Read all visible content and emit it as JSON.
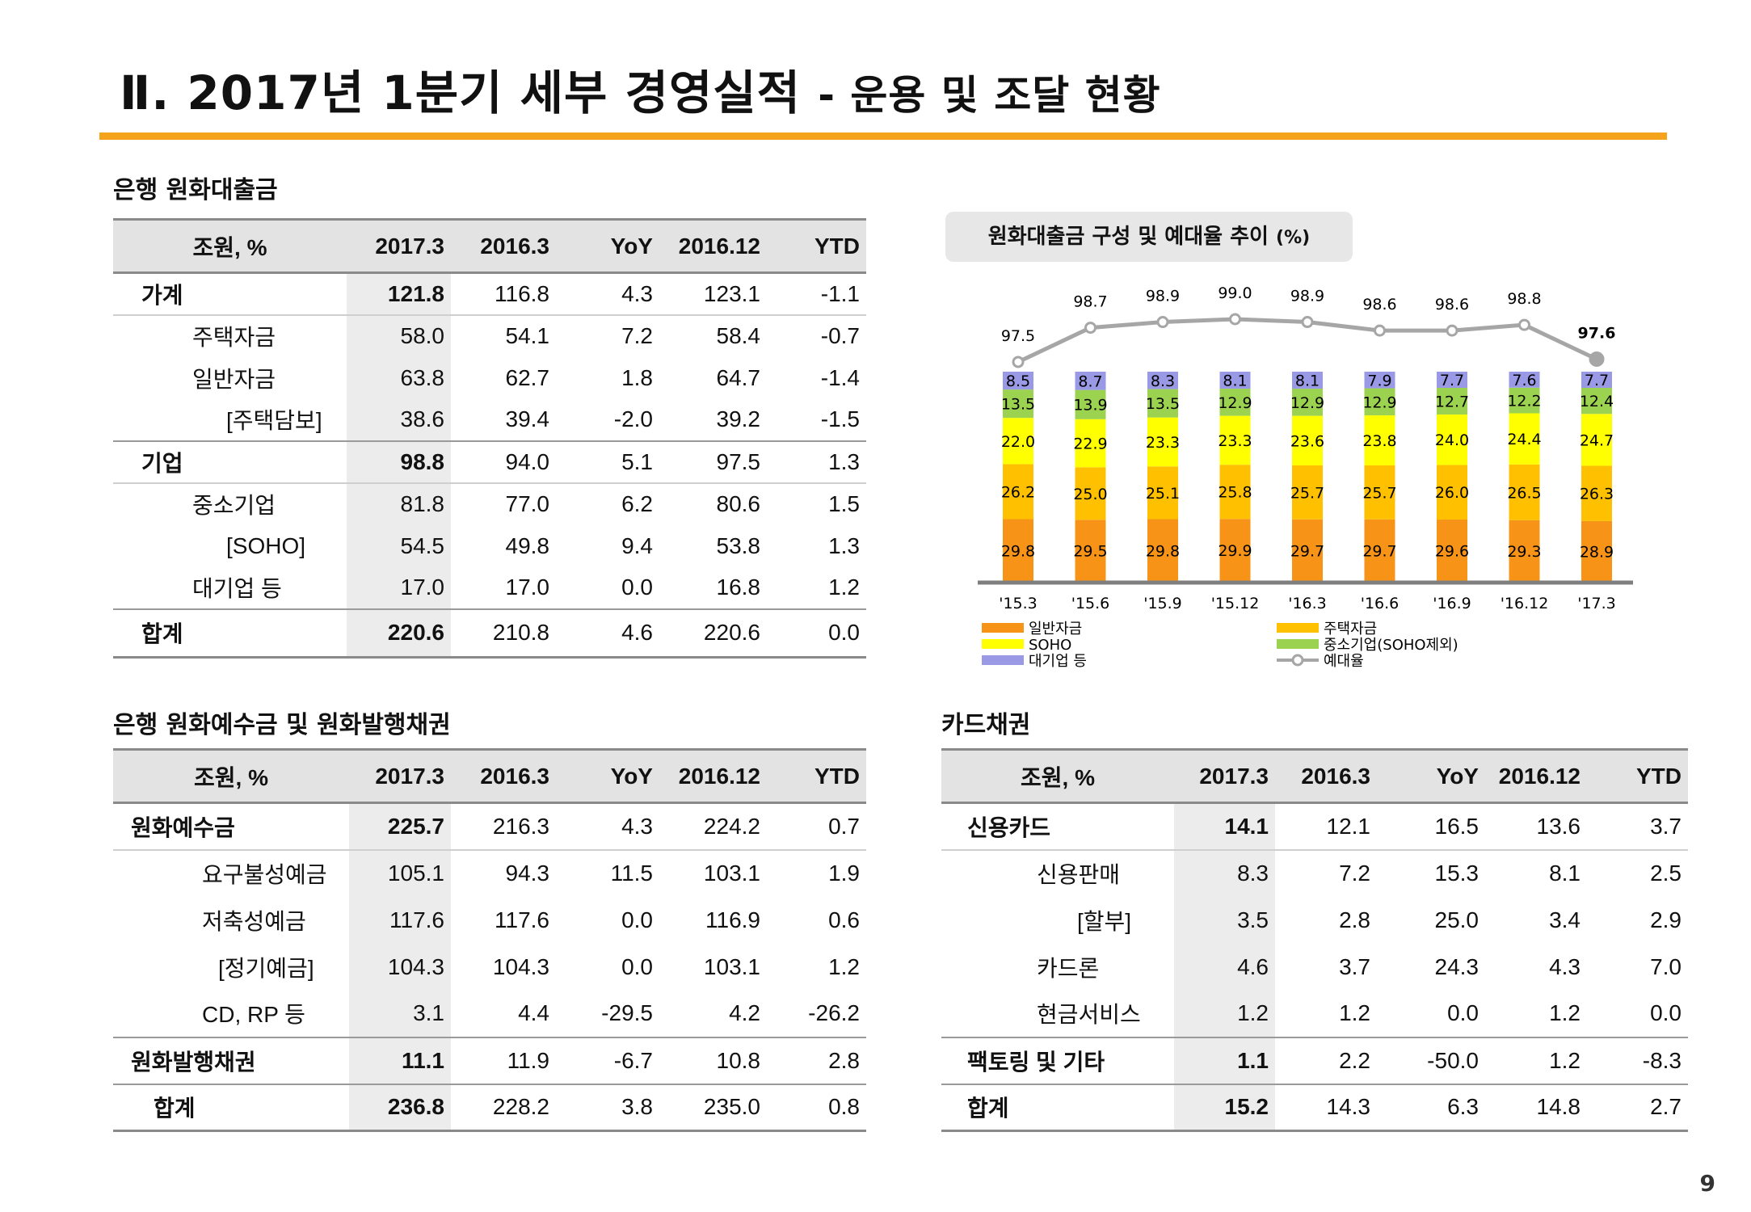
{
  "page": {
    "title": "Ⅱ. 2017년 1분기 세부 경영실적",
    "subtitle": "- 운용 및 조달 현황",
    "page_number": "9"
  },
  "loans": {
    "section_title": "은행 원화대출금",
    "headers": [
      "조원, %",
      "2017.3",
      "2016.3",
      "YoY",
      "2016.12",
      "YTD"
    ],
    "rows": [
      {
        "label": "가계",
        "values": [
          "121.8",
          "116.8",
          "4.3",
          "123.1",
          "-1.1"
        ]
      },
      {
        "label": "주택자금",
        "values": [
          "58.0",
          "54.1",
          "7.2",
          "58.4",
          "-0.7"
        ]
      },
      {
        "label": "일반자금",
        "values": [
          "63.8",
          "62.7",
          "1.8",
          "64.7",
          "-1.4"
        ]
      },
      {
        "label": "[주택담보]",
        "values": [
          "38.6",
          "39.4",
          "-2.0",
          "39.2",
          "-1.5"
        ]
      },
      {
        "label": "기업",
        "values": [
          "98.8",
          "94.0",
          "5.1",
          "97.5",
          "1.3"
        ]
      },
      {
        "label": "중소기업",
        "values": [
          "81.8",
          "77.0",
          "6.2",
          "80.6",
          "1.5"
        ]
      },
      {
        "label": "[SOHO]",
        "values": [
          "54.5",
          "49.8",
          "9.4",
          "53.8",
          "1.3"
        ]
      },
      {
        "label": "대기업 등",
        "values": [
          "17.0",
          "17.0",
          "0.0",
          "16.8",
          "1.2"
        ]
      },
      {
        "label": "합계",
        "values": [
          "220.6",
          "210.8",
          "4.6",
          "220.6",
          "0.0"
        ]
      }
    ]
  },
  "deposits": {
    "section_title": "은행 원화예수금 및 원화발행채권",
    "headers": [
      "조원, %",
      "2017.3",
      "2016.3",
      "YoY",
      "2016.12",
      "YTD"
    ],
    "rows": [
      {
        "label": "원화예수금",
        "values": [
          "225.7",
          "216.3",
          "4.3",
          "224.2",
          "0.7"
        ]
      },
      {
        "label": "요구불성예금",
        "values": [
          "105.1",
          "94.3",
          "11.5",
          "103.1",
          "1.9"
        ]
      },
      {
        "label": "저축성예금",
        "values": [
          "117.6",
          "117.6",
          "0.0",
          "116.9",
          "0.6"
        ]
      },
      {
        "label": "[정기예금]",
        "values": [
          "104.3",
          "104.3",
          "0.0",
          "103.1",
          "1.2"
        ]
      },
      {
        "label": "CD, RP 등",
        "values": [
          "3.1",
          "4.4",
          "-29.5",
          "4.2",
          "-26.2"
        ]
      },
      {
        "label": "원화발행채권",
        "values": [
          "11.1",
          "11.9",
          "-6.7",
          "10.8",
          "2.8"
        ]
      },
      {
        "label": "합계",
        "values": [
          "236.8",
          "228.2",
          "3.8",
          "235.0",
          "0.8"
        ]
      }
    ]
  },
  "cards": {
    "section_title": "카드채권",
    "headers": [
      "조원, %",
      "2017.3",
      "2016.3",
      "YoY",
      "2016.12",
      "YTD"
    ],
    "rows": [
      {
        "label": "신용카드",
        "values": [
          "14.1",
          "12.1",
          "16.5",
          "13.6",
          "3.7"
        ]
      },
      {
        "label": "신용판매",
        "values": [
          "8.3",
          "7.2",
          "15.3",
          "8.1",
          "2.5"
        ]
      },
      {
        "label": "[할부]",
        "values": [
          "3.5",
          "2.8",
          "25.0",
          "3.4",
          "2.9"
        ]
      },
      {
        "label": "카드론",
        "values": [
          "4.6",
          "3.7",
          "24.3",
          "4.3",
          "7.0"
        ]
      },
      {
        "label": "현금서비스",
        "values": [
          "1.2",
          "1.2",
          "0.0",
          "1.2",
          "0.0"
        ]
      },
      {
        "label": "팩토링 및 기타",
        "values": [
          "1.1",
          "2.2",
          "-50.0",
          "1.2",
          "-8.3"
        ]
      },
      {
        "label": "합계",
        "values": [
          "15.2",
          "14.3",
          "6.3",
          "14.8",
          "2.7"
        ]
      }
    ]
  },
  "chart_data": {
    "type": "bar",
    "title": "원화대출금 구성 및 예대율 추이",
    "unit": "(%)",
    "categories": [
      "'15.3",
      "'15.6",
      "'15.9",
      "'15.12",
      "'16.3",
      "'16.6",
      "'16.9",
      "'16.12",
      "'17.3"
    ],
    "stacked": true,
    "series": [
      {
        "name": "일반자금",
        "color": "#f79418",
        "values": [
          29.8,
          29.5,
          29.8,
          29.9,
          29.7,
          29.7,
          29.6,
          29.3,
          28.9
        ]
      },
      {
        "name": "주택자금",
        "color": "#ffc000",
        "values": [
          26.2,
          25.0,
          25.1,
          25.8,
          25.7,
          25.7,
          26.0,
          26.5,
          26.3
        ]
      },
      {
        "name": "SOHO",
        "color": "#ffff00",
        "values": [
          22.0,
          22.9,
          23.3,
          23.3,
          23.6,
          23.8,
          24.0,
          24.4,
          24.7
        ]
      },
      {
        "name": "중소기업(SOHO제외)",
        "color": "#9bd250",
        "values": [
          13.5,
          13.9,
          13.5,
          12.9,
          12.9,
          12.9,
          12.7,
          12.2,
          12.4
        ]
      },
      {
        "name": "대기업 등",
        "color": "#9999e6",
        "values": [
          8.5,
          8.7,
          8.3,
          8.1,
          8.1,
          7.9,
          7.7,
          7.6,
          7.7
        ]
      }
    ],
    "line_series": {
      "name": "예대율",
      "color": "#a6a6a6",
      "values": [
        97.5,
        98.7,
        98.9,
        99.0,
        98.9,
        98.6,
        98.6,
        98.8,
        97.6
      ]
    },
    "legend": [
      {
        "name": "일반자금",
        "color": "#f79418",
        "kind": "bar"
      },
      {
        "name": "주택자금",
        "color": "#ffc000",
        "kind": "bar"
      },
      {
        "name": "SOHO",
        "color": "#ffff00",
        "kind": "bar"
      },
      {
        "name": "중소기업(SOHO제외)",
        "color": "#9bd250",
        "kind": "bar"
      },
      {
        "name": "대기업 등",
        "color": "#9999e6",
        "kind": "bar"
      },
      {
        "name": "예대율",
        "color": "#a6a6a6",
        "kind": "line"
      }
    ],
    "legend_position": "bottom"
  }
}
